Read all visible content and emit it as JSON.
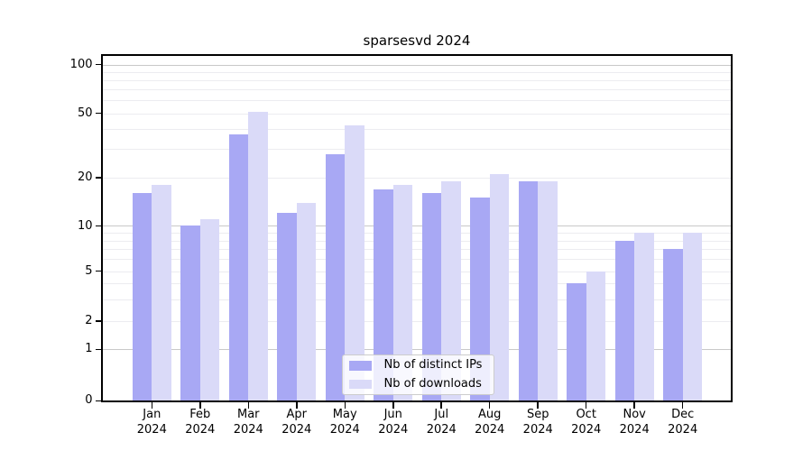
{
  "title": "sparsesvd 2024",
  "legend": {
    "items": [
      {
        "label": "Nb of distinct IPs",
        "color": "#a8a8f4"
      },
      {
        "label": "Nb of downloads",
        "color": "#dadaf8"
      }
    ]
  },
  "colors": {
    "bar_distinct_ips": "#a8a8f4",
    "bar_downloads": "#dadaf8",
    "major_grid": "#c9c9c9",
    "minor_grid": "#ececf0",
    "axis": "#000000",
    "legend_border": "#cccccc"
  },
  "y_axis": {
    "tick_values": [
      100,
      50,
      20,
      10,
      5,
      2,
      1,
      0
    ],
    "tick_labels": [
      "100",
      "50",
      "20",
      "10",
      "5",
      "2",
      "1",
      "0"
    ],
    "major_grid_values": [
      1,
      10,
      100
    ],
    "minor_grid_values": [
      2,
      3,
      4,
      5,
      6,
      7,
      8,
      9,
      20,
      30,
      40,
      50,
      60,
      70,
      80,
      90
    ]
  },
  "x_axis": {
    "year": "2024",
    "months": [
      "Jan",
      "Feb",
      "Mar",
      "Apr",
      "May",
      "Jun",
      "Jul",
      "Aug",
      "Sep",
      "Oct",
      "Nov",
      "Dec"
    ]
  },
  "chart_data": {
    "type": "bar",
    "title": "sparsesvd 2024",
    "categories": [
      "Jan 2024",
      "Feb 2024",
      "Mar 2024",
      "Apr 2024",
      "May 2024",
      "Jun 2024",
      "Jul 2024",
      "Aug 2024",
      "Sep 2024",
      "Oct 2024",
      "Nov 2024",
      "Dec 2024"
    ],
    "series": [
      {
        "name": "Nb of distinct IPs",
        "color": "#a8a8f4",
        "values": [
          16,
          10,
          37,
          12,
          28,
          17,
          16,
          15,
          19,
          4,
          8,
          7
        ]
      },
      {
        "name": "Nb of downloads",
        "color": "#dadaf8",
        "values": [
          18,
          11,
          51,
          14,
          42,
          18,
          19,
          21,
          19,
          5,
          9,
          9
        ]
      }
    ],
    "xlabel": "",
    "ylabel": "",
    "yscale": "symlog",
    "y_ticks": [
      0,
      1,
      2,
      5,
      10,
      20,
      50,
      100
    ],
    "ylim": [
      0,
      113
    ],
    "grid": true,
    "legend_position": "lower center"
  }
}
